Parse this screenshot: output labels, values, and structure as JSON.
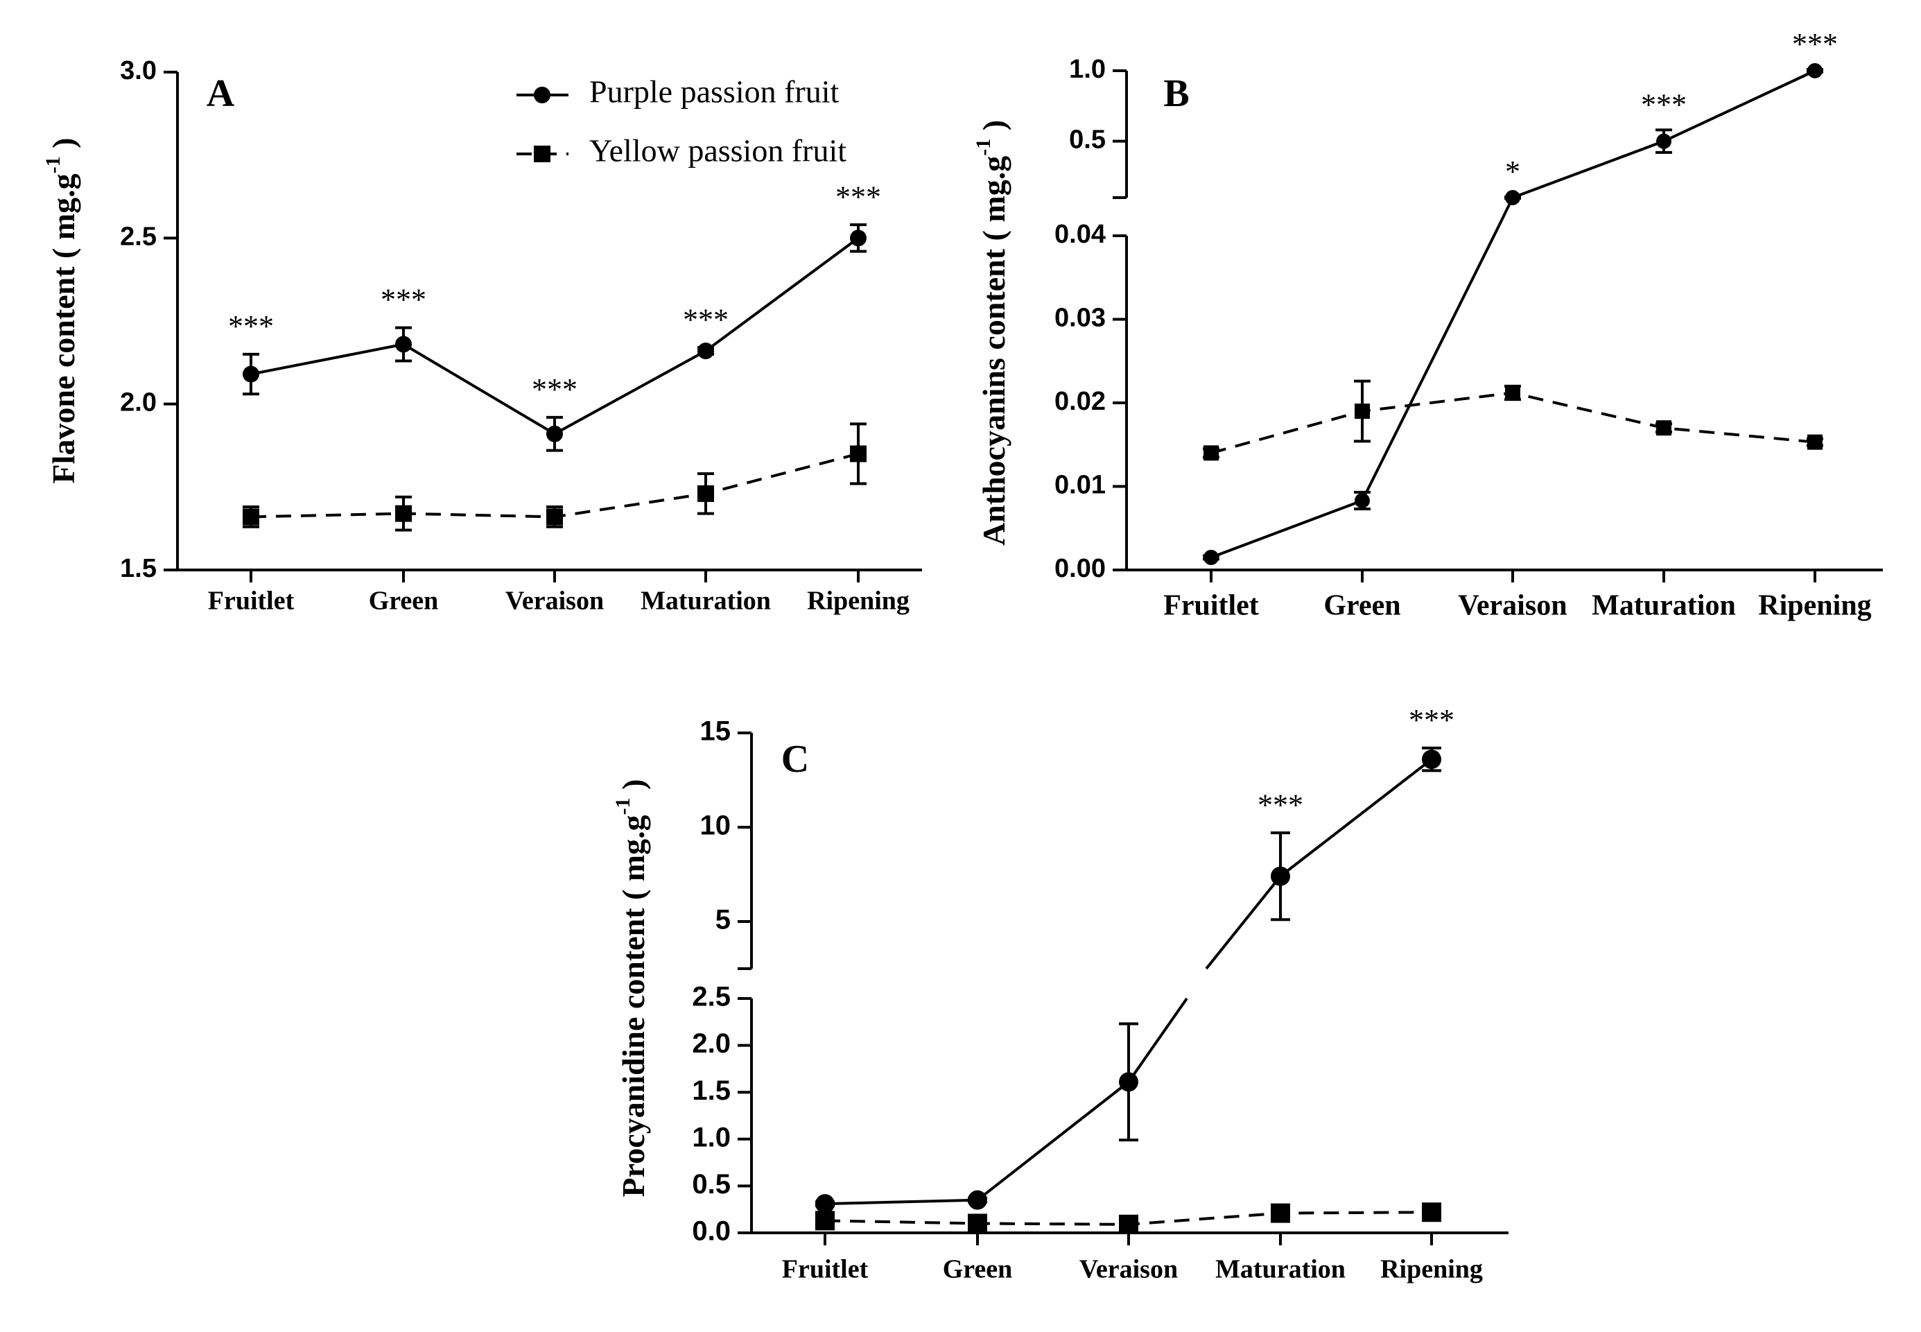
{
  "legend": {
    "purple": "Purple passion fruit",
    "yellow": "Yellow passion fruit"
  },
  "chart_data": [
    {
      "panel": "A",
      "type": "line",
      "categories": [
        "Fruitlet",
        "Green",
        "Veraison",
        "Maturation",
        "Ripening"
      ],
      "ylabel": "Flavone content",
      "ylabel_unit": "( mg.g",
      "ylabel_sup": "-1",
      "ylabel_close": " )",
      "ylim": [
        1.5,
        3.0
      ],
      "yticks": [
        "1.5",
        "2.0",
        "2.5",
        "3.0"
      ],
      "series": [
        {
          "name": "Purple passion fruit",
          "values": [
            2.09,
            2.18,
            1.91,
            2.16,
            2.5
          ],
          "errors": [
            0.06,
            0.05,
            0.05,
            0.01,
            0.04
          ]
        },
        {
          "name": "Yellow passion fruit",
          "values": [
            1.66,
            1.67,
            1.66,
            1.73,
            1.85
          ],
          "errors": [
            0.03,
            0.05,
            0.03,
            0.06,
            0.09
          ]
        }
      ],
      "annotations": [
        "***",
        "***",
        "***",
        "***",
        "***"
      ]
    },
    {
      "panel": "B",
      "type": "line",
      "categories": [
        "Fruitlet",
        "Green",
        "Veraison",
        "Maturation",
        "Ripening"
      ],
      "ylabel": "Anthocyanins content",
      "ylabel_unit": "( mg.g",
      "ylabel_sup": "-1",
      "ylabel_close": " )",
      "ylim": [
        0,
        1.0
      ],
      "axis_break": [
        0.04,
        0.1
      ],
      "yticks_lower": [
        "0.00",
        "0.01",
        "0.02",
        "0.03",
        "0.04"
      ],
      "yticks_upper": [
        "0.5",
        "1.0"
      ],
      "series": [
        {
          "name": "Purple passion fruit",
          "values": [
            0.0015,
            0.0083,
            0.1,
            0.5,
            1.0
          ],
          "errors": [
            0.0002,
            0.001,
            0.005,
            0.08,
            0.01
          ]
        },
        {
          "name": "Yellow passion fruit",
          "values": [
            0.014,
            0.019,
            0.0212,
            0.017,
            0.0153
          ],
          "errors": [
            0.0005,
            0.0036,
            0.0008,
            0.0005,
            0.0004
          ]
        }
      ],
      "annotations": [
        "",
        "",
        "*",
        "***",
        "***"
      ]
    },
    {
      "panel": "C",
      "type": "line",
      "categories": [
        "Fruitlet",
        "Green",
        "Veraison",
        "Maturation",
        "Ripening"
      ],
      "ylabel": "Procyanidine content",
      "ylabel_unit": "( mg.g",
      "ylabel_sup": "-1",
      "ylabel_close": " )",
      "ylim": [
        0,
        15
      ],
      "axis_break": [
        2.5,
        2.5
      ],
      "yticks_lower": [
        "0.0",
        "0.5",
        "1.0",
        "1.5",
        "2.0",
        "2.5"
      ],
      "yticks_upper": [
        "5",
        "10",
        "15"
      ],
      "series": [
        {
          "name": "Purple passion fruit",
          "values": [
            0.31,
            0.35,
            1.61,
            7.4,
            13.6
          ],
          "errors": [
            0.02,
            0.02,
            0.62,
            2.3,
            0.6
          ]
        },
        {
          "name": "Yellow passion fruit",
          "values": [
            0.13,
            0.1,
            0.09,
            0.21,
            0.22
          ],
          "errors": [
            0.01,
            0.01,
            0.01,
            0.02,
            0.02
          ]
        }
      ],
      "annotations": [
        "",
        "",
        "",
        "***",
        "***"
      ]
    }
  ]
}
